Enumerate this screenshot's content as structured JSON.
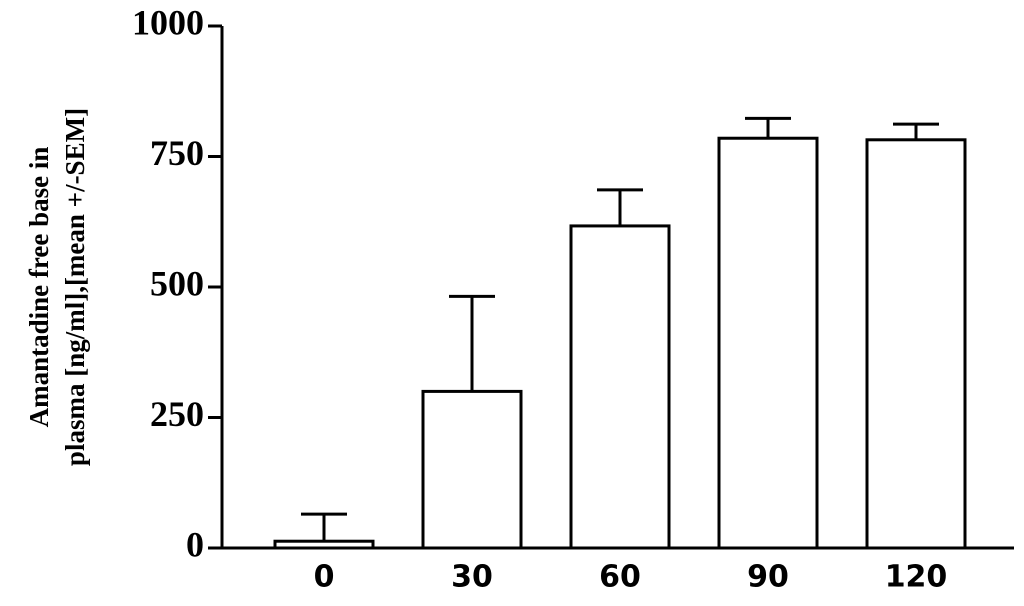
{
  "chart_data": {
    "type": "bar",
    "y_label": [
      "Amantadine free base in",
      "plasma [ng/ml],[mean +/-SEM]"
    ],
    "categories": [
      "0",
      "30",
      "60",
      "90",
      "120"
    ],
    "values": [
      13,
      300,
      617,
      785,
      782
    ],
    "errors": [
      52,
      182,
      69,
      38,
      30
    ],
    "color": "#ffffff",
    "ylim": [
      0,
      1000
    ],
    "yticks": [
      0,
      250,
      500,
      750,
      1000
    ],
    "grid": false
  }
}
